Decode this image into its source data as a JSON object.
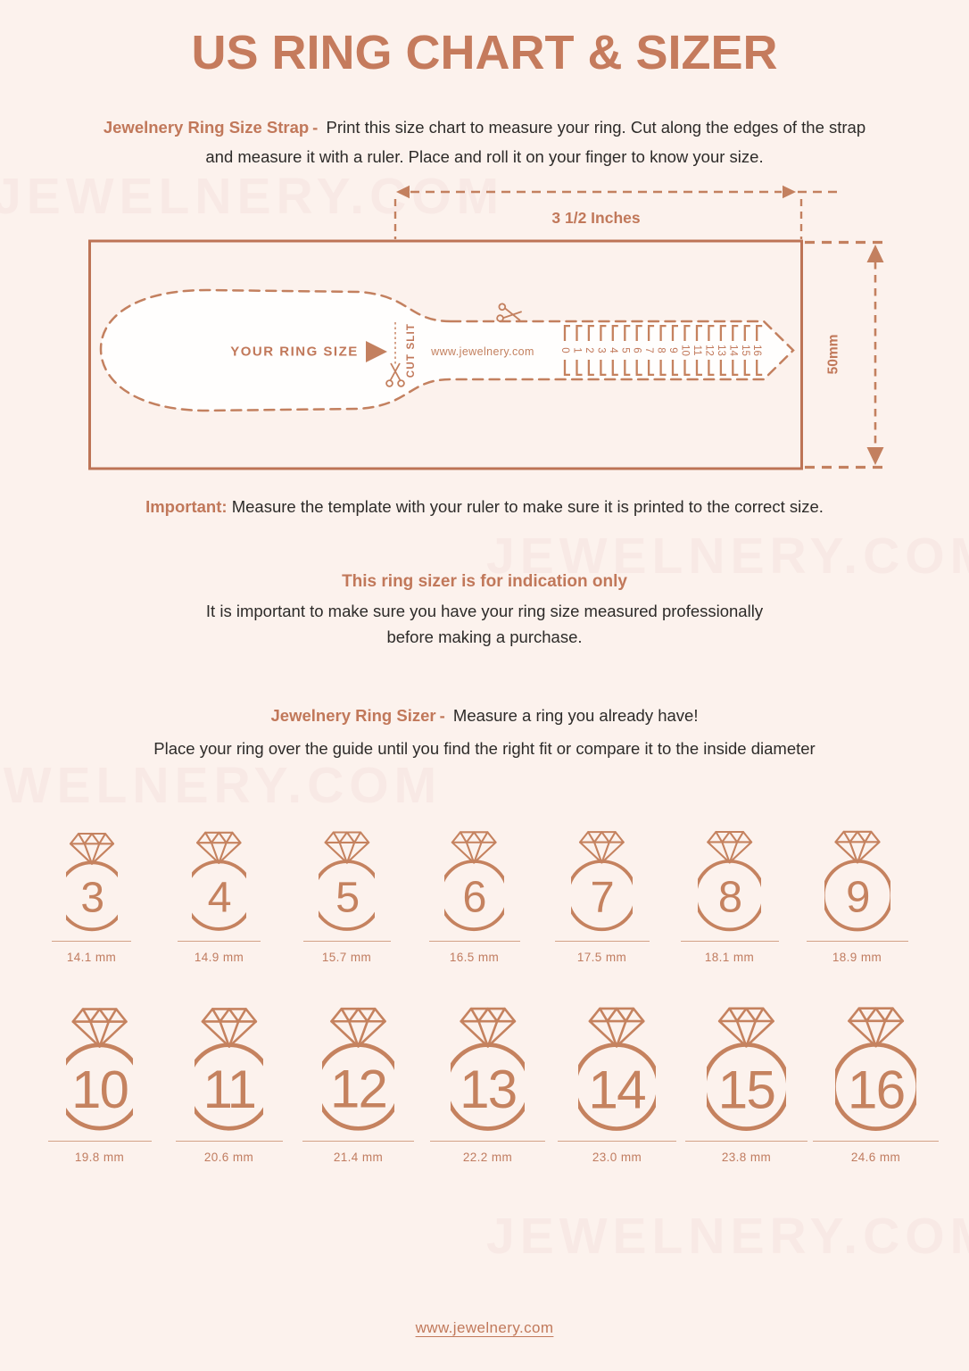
{
  "page": {
    "bg_color": "#fcf2ed",
    "accent_color": "#c1785a",
    "text_color": "#2d2b29",
    "watermark_color": "#f8e9e5",
    "watermark_text": "JEWELNERY.COM"
  },
  "header": {
    "title": "US RING CHART & SIZER"
  },
  "intro": {
    "lead": "Jewelnery Ring Size Strap",
    "separator": "-",
    "body": "Print this size chart to measure your ring. Cut along the edges of the strap and measure it with a ruler. Place and roll it on your finger to know your size."
  },
  "diagram": {
    "width_label": "3 1/2 Inches",
    "height_label": "50mm",
    "strap_label": "YOUR RING SIZE",
    "cut_slit_label": "CUT SLIT",
    "site_label": "www.jewelnery.com",
    "ruler_numbers": [
      "0",
      "1",
      "2",
      "3",
      "4",
      "5",
      "6",
      "7",
      "8",
      "9",
      "10",
      "11",
      "12",
      "13",
      "14",
      "15",
      "16"
    ]
  },
  "important": {
    "lead": "Important:",
    "body": "Measure the template with your ruler to make sure it is printed to the correct size."
  },
  "indication": {
    "heading": "This ring sizer is for indication only",
    "body_line1": "It is important to make sure you have your ring size measured professionally",
    "body_line2": "before making a purchase."
  },
  "sizer_section": {
    "lead": "Jewelnery Ring Sizer",
    "separator": "-",
    "lead_body": "Measure a ring you already have!",
    "body": "Place your ring over the guide until you find the right fit or compare it to the inside diameter"
  },
  "rings": {
    "row1": [
      {
        "size": "3",
        "mm": "14.1 mm"
      },
      {
        "size": "4",
        "mm": "14.9 mm"
      },
      {
        "size": "5",
        "mm": "15.7 mm"
      },
      {
        "size": "6",
        "mm": "16.5 mm"
      },
      {
        "size": "7",
        "mm": "17.5 mm"
      },
      {
        "size": "8",
        "mm": "18.1 mm"
      },
      {
        "size": "9",
        "mm": "18.9 mm"
      }
    ],
    "row2": [
      {
        "size": "10",
        "mm": "19.8 mm"
      },
      {
        "size": "11",
        "mm": "20.6 mm"
      },
      {
        "size": "12",
        "mm": "21.4 mm"
      },
      {
        "size": "13",
        "mm": "22.2 mm"
      },
      {
        "size": "14",
        "mm": "23.0 mm"
      },
      {
        "size": "15",
        "mm": "23.8 mm"
      },
      {
        "size": "16",
        "mm": "24.6 mm"
      }
    ]
  },
  "footer": {
    "site": "www.jewelnery.com"
  }
}
